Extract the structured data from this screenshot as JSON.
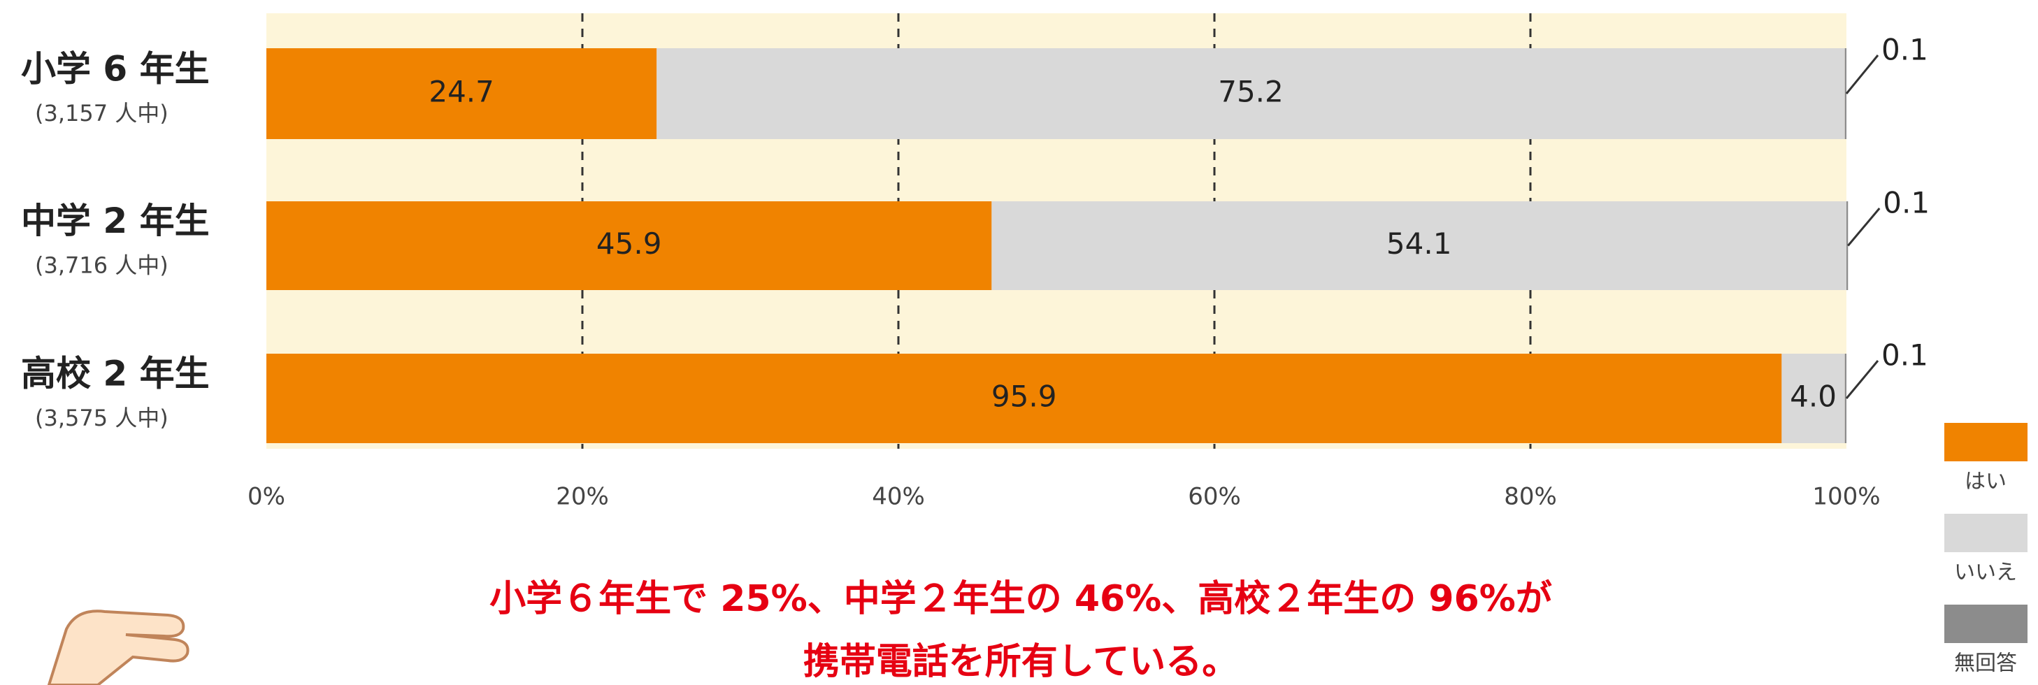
{
  "chart_data": {
    "type": "stacked-barh",
    "categories": [
      "小学 6 年生",
      "中学 2 年生",
      "高校 2 年生"
    ],
    "category_notes": [
      "(3,157 人中)",
      "(3,716 人中)",
      "(3,575 人中)"
    ],
    "series": [
      {
        "name": "はい",
        "color": "#f08300",
        "values": [
          24.7,
          45.9,
          95.9
        ]
      },
      {
        "name": "いいえ",
        "color": "#d9d9d9",
        "values": [
          75.2,
          54.1,
          4.0
        ],
        "value_labels": [
          "75.2",
          "54.1",
          "4.0"
        ]
      },
      {
        "name": "無回答",
        "color": "#8c8c8c",
        "values": [
          0.1,
          0.1,
          0.1
        ]
      }
    ],
    "xlim": [
      0,
      100
    ],
    "xticks": [
      {
        "value": 0,
        "label": "0%"
      },
      {
        "value": 20,
        "label": "20%"
      },
      {
        "value": 40,
        "label": "40%"
      },
      {
        "value": 60,
        "label": "60%"
      },
      {
        "value": 80,
        "label": "80%"
      },
      {
        "value": 100,
        "label": "100%"
      }
    ],
    "grid": true,
    "legend": "right",
    "annotations": [
      "小学６年生で 25%、中学２年生の 46%、高校２年生の 96%が",
      "携帯電話を所有している。"
    ]
  }
}
